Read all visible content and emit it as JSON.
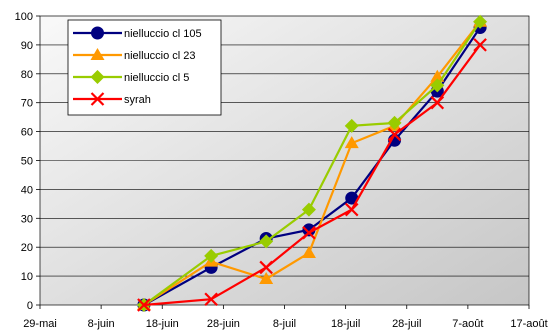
{
  "chart_data": {
    "type": "line",
    "title": "",
    "xlabel": "",
    "ylabel": "",
    "x_ticks": [
      "29-mai",
      "8-juin",
      "18-juin",
      "28-juin",
      "8-juil",
      "18-juil",
      "28-juil",
      "7-août",
      "17-août"
    ],
    "x_range": [
      "29-mai",
      "17-août"
    ],
    "ylim": [
      0,
      100
    ],
    "y_ticks": [
      0,
      10,
      20,
      30,
      40,
      50,
      60,
      70,
      80,
      90,
      100
    ],
    "grid": "horizontal",
    "plot_background": "gradient light gray",
    "legend_position": "top-left",
    "series": [
      {
        "name": "nielluccio cl 105",
        "color": "#000080",
        "marker": "circle",
        "points": [
          {
            "x": "15-juin",
            "y": 0
          },
          {
            "x": "26-juin",
            "y": 13
          },
          {
            "x": "5-juil",
            "y": 23
          },
          {
            "x": "12-juil",
            "y": 26
          },
          {
            "x": "19-juil",
            "y": 37
          },
          {
            "x": "26-juil",
            "y": 57
          },
          {
            "x": "2-août",
            "y": 74
          },
          {
            "x": "9-août",
            "y": 96
          }
        ]
      },
      {
        "name": "nielluccio cl 23",
        "color": "#ff9900",
        "marker": "triangle",
        "points": [
          {
            "x": "15-juin",
            "y": 0
          },
          {
            "x": "26-juin",
            "y": 15
          },
          {
            "x": "5-juil",
            "y": 9
          },
          {
            "x": "12-juil",
            "y": 18
          },
          {
            "x": "19-juil",
            "y": 56
          },
          {
            "x": "26-juil",
            "y": 62
          },
          {
            "x": "2-août",
            "y": 79
          },
          {
            "x": "9-août",
            "y": 98
          }
        ]
      },
      {
        "name": "nielluccio cl 5",
        "color": "#99cc00",
        "marker": "diamond",
        "points": [
          {
            "x": "15-juin",
            "y": 0
          },
          {
            "x": "26-juin",
            "y": 17
          },
          {
            "x": "5-juil",
            "y": 22
          },
          {
            "x": "12-juil",
            "y": 33
          },
          {
            "x": "19-juil",
            "y": 62
          },
          {
            "x": "26-juil",
            "y": 63
          },
          {
            "x": "2-août",
            "y": 76
          },
          {
            "x": "9-août",
            "y": 98
          }
        ]
      },
      {
        "name": "syrah",
        "color": "#ff0000",
        "marker": "x",
        "points": [
          {
            "x": "15-juin",
            "y": 0
          },
          {
            "x": "26-juin",
            "y": 2
          },
          {
            "x": "5-juil",
            "y": 13
          },
          {
            "x": "12-juil",
            "y": 25
          },
          {
            "x": "19-juil",
            "y": 33
          },
          {
            "x": "26-juil",
            "y": 59
          },
          {
            "x": "2-août",
            "y": 70
          },
          {
            "x": "9-août",
            "y": 90
          }
        ]
      }
    ]
  }
}
